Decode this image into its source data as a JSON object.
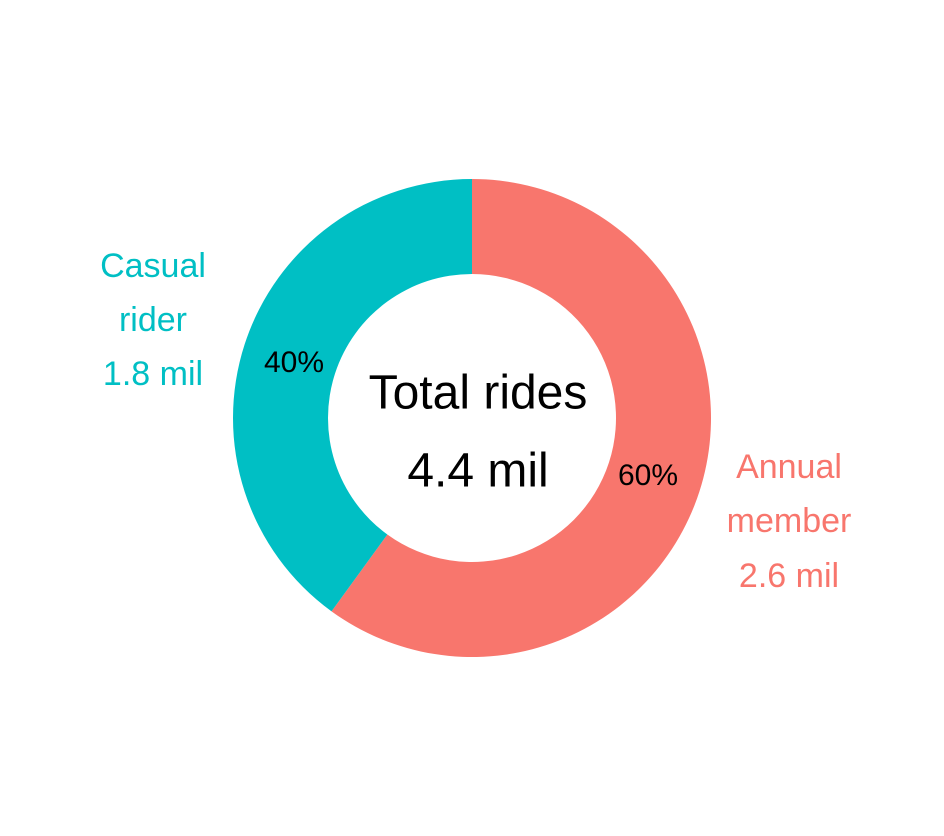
{
  "chart_data": {
    "type": "pie",
    "style": "donut",
    "categories": [
      "Annual member",
      "Casual rider"
    ],
    "values": [
      60,
      40
    ],
    "unit": "%",
    "colors": [
      "#F8766D",
      "#00BFC4"
    ],
    "slices": [
      {
        "pct_label": "60%",
        "outer_lines": [
          "Annual",
          "member",
          "2.6 mil"
        ],
        "color": "#F8766D"
      },
      {
        "pct_label": "40%",
        "outer_lines": [
          "Casual",
          "rider",
          "1.8 mil"
        ],
        "color": "#00BFC4"
      }
    ],
    "center_lines": [
      "Total rides",
      "4.4  mil"
    ],
    "legend": "none"
  }
}
